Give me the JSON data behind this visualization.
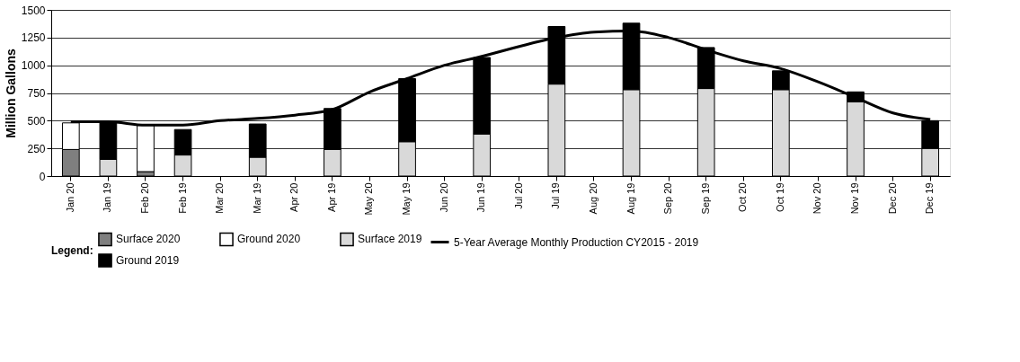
{
  "chart_data": {
    "type": "bar",
    "stacked": true,
    "ylabel": "Million Gallons",
    "legend_title": "Legend:",
    "legend": "bottom",
    "grid": "y",
    "categories": [
      "Jan 20",
      "Jan 19",
      "Feb 20",
      "Feb 19",
      "Mar 20",
      "Mar 19",
      "Apr 20",
      "Apr 19",
      "May 20",
      "May 19",
      "Jun 20",
      "Jun 19",
      "Jul 20",
      "Jul 19",
      "Aug 20",
      "Aug 19",
      "Sep 20",
      "Sep 19",
      "Oct 20",
      "Oct 19",
      "Nov 20",
      "Nov 19",
      "Dec 20",
      "Dec 19"
    ],
    "ylim": [
      0,
      1500
    ],
    "yticks": [
      0,
      250,
      500,
      750,
      1000,
      1250,
      1500
    ],
    "series": [
      {
        "name": "Surface 2020",
        "color": "#7f7f7f",
        "values": [
          240,
          null,
          40,
          null,
          null,
          null,
          null,
          null,
          null,
          null,
          null,
          null,
          null,
          null,
          null,
          null,
          null,
          null,
          null,
          null,
          null,
          null,
          null,
          null
        ]
      },
      {
        "name": "Ground 2020",
        "color": "#ffffff",
        "values": [
          240,
          null,
          420,
          null,
          null,
          null,
          null,
          null,
          null,
          null,
          null,
          null,
          null,
          null,
          null,
          null,
          null,
          null,
          null,
          null,
          null,
          null,
          null,
          null
        ]
      },
      {
        "name": "Surface 2019",
        "color": "#d9d9d9",
        "values": [
          null,
          150,
          null,
          190,
          null,
          170,
          null,
          240,
          null,
          310,
          null,
          380,
          null,
          830,
          null,
          780,
          null,
          790,
          null,
          780,
          null,
          670,
          null,
          250
        ]
      },
      {
        "name": "Ground 2019",
        "color": "#000000",
        "values": [
          null,
          340,
          null,
          230,
          null,
          300,
          null,
          370,
          null,
          570,
          null,
          690,
          null,
          520,
          null,
          600,
          null,
          370,
          null,
          170,
          null,
          90,
          null,
          250
        ]
      },
      {
        "name": "5-Year Average Monthly Production CY2015 - 2019",
        "type": "line",
        "color": "#000000",
        "values": [
          490,
          490,
          460,
          460,
          500,
          520,
          550,
          600,
          760,
          880,
          1000,
          1080,
          1170,
          1250,
          1300,
          1310,
          1250,
          1140,
          1040,
          970,
          850,
          710,
          570,
          510
        ]
      }
    ]
  }
}
